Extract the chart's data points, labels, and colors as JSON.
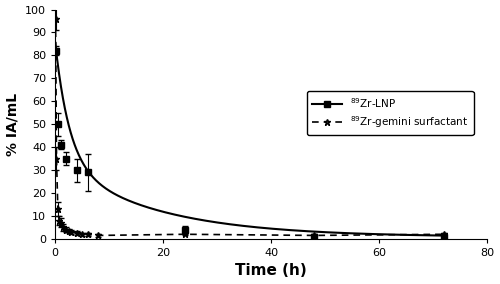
{
  "lnp_x": [
    0.08,
    0.5,
    1,
    2,
    4,
    6,
    24,
    48,
    72
  ],
  "lnp_y": [
    82,
    50,
    41,
    35,
    30,
    29,
    4,
    1,
    1
  ],
  "lnp_err": [
    2,
    5,
    2,
    3,
    5,
    8,
    1.5,
    0.5,
    0.5
  ],
  "surf_x": [
    0.08,
    0.25,
    0.5,
    0.75,
    1,
    1.5,
    2,
    2.5,
    3,
    4,
    5,
    6,
    8,
    24,
    48,
    72
  ],
  "surf_y": [
    96,
    35,
    13,
    8,
    7,
    5,
    4,
    3.5,
    3,
    2.5,
    2,
    2,
    1.5,
    2,
    1.5,
    2
  ],
  "surf_err": [
    5,
    5,
    3,
    2,
    2,
    1.5,
    1,
    1,
    1,
    0.8,
    0.6,
    0.6,
    0.5,
    0.5,
    0.5,
    0.5
  ],
  "xlabel": "Time (h)",
  "ylabel": "% IA/mL",
  "xlim": [
    0,
    80
  ],
  "ylim": [
    0,
    100
  ],
  "xticks": [
    0,
    20,
    40,
    60,
    80
  ],
  "yticks": [
    0,
    10,
    20,
    30,
    40,
    50,
    60,
    70,
    80,
    90,
    100
  ],
  "legend_lnp": "$^{89}$Zr-LNP",
  "legend_surf": "$^{89}$Zr-gemini surfactant",
  "lnp_color": "#000000",
  "surf_color": "#000000",
  "bg_color": "#ffffff",
  "lnp_smooth_a1": 52,
  "lnp_smooth_k1": 0.38,
  "lnp_smooth_a2": 33,
  "lnp_smooth_k2": 0.055,
  "lnp_smooth_c": 0.8
}
